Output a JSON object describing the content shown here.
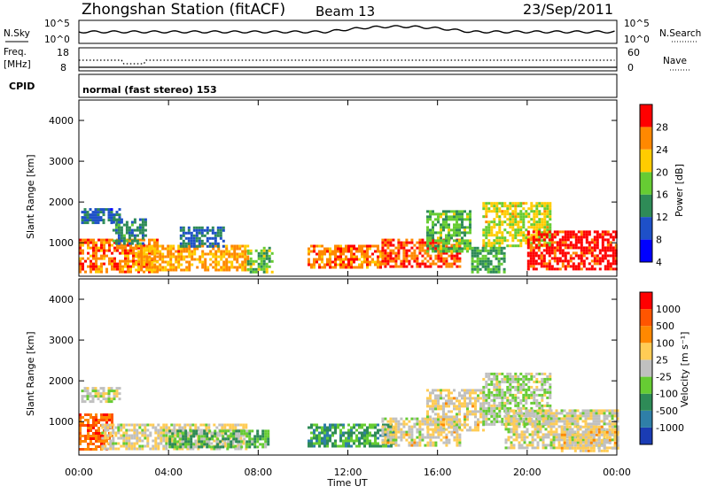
{
  "header": {
    "station": "Zhongshan Station (fitACF)",
    "beam": "Beam 13",
    "date": "23/Sep/2011"
  },
  "top_panels": {
    "noise_label": "N.Sky",
    "noise_ticks": [
      "10^5",
      "10^0"
    ],
    "noise_right_label": "N.Search",
    "noise_right_ticks": [
      "10^5",
      "10^0"
    ],
    "freq_label": "Freq.",
    "freq_unit": "[MHz]",
    "freq_ticks": [
      "18",
      "8"
    ],
    "nave_label": "Nave",
    "nave_ticks": [
      "60",
      "0"
    ],
    "cpid_label": "CPID",
    "cpid_text": "normal (fast stereo) 153"
  },
  "power_panel": {
    "ylabel": "Slant Range [km]",
    "yticks": [
      "4000",
      "3000",
      "2000",
      "1000"
    ],
    "colorbar_label": "Power [dB]",
    "colorbar_ticks": [
      "28",
      "24",
      "20",
      "16",
      "12",
      "8",
      "4"
    ],
    "colors": [
      "#0000ff",
      "#1e50c8",
      "#2e8b57",
      "#66cc33",
      "#ffcc00",
      "#ff8800",
      "#ff0000"
    ]
  },
  "velocity_panel": {
    "ylabel": "Slant Range [km]",
    "yticks": [
      "4000",
      "3000",
      "2000",
      "1000"
    ],
    "colorbar_label": "Velocity [m s⁻¹]",
    "colorbar_ticks": [
      "1000",
      "500",
      "100",
      "25",
      "-25",
      "-100",
      "-500",
      "-1000"
    ],
    "colors": [
      "#1a3cb4",
      "#2f7fa8",
      "#2e8b57",
      "#66cc33",
      "#c0c0c0",
      "#ffcc55",
      "#ff8800",
      "#ff5500",
      "#ff0000"
    ]
  },
  "xaxis": {
    "label": "Time UT",
    "ticks": [
      "00:00",
      "04:00",
      "08:00",
      "12:00",
      "16:00",
      "20:00",
      "00:00"
    ]
  },
  "chart_data": {
    "type": "heatmap",
    "title": "Zhongshan Station (fitACF) Beam 13 23/Sep/2011",
    "xlabel": "Time UT",
    "ylabel": "Slant Range [km]",
    "x_range_hours": [
      0,
      24
    ],
    "y_range_km": [
      180,
      4500
    ],
    "panels": [
      {
        "name": "Power [dB]",
        "value_range": [
          0,
          30
        ],
        "echo_regions": [
          {
            "t_start": 0.1,
            "t_end": 1.8,
            "r_min": 1500,
            "r_max": 1850,
            "value": 8
          },
          {
            "t_start": 0.0,
            "t_end": 3.5,
            "r_min": 300,
            "r_max": 1100,
            "value": 24
          },
          {
            "t_start": 1.5,
            "t_end": 3.0,
            "r_min": 1000,
            "r_max": 1600,
            "value": 10
          },
          {
            "t_start": 2.5,
            "t_end": 7.5,
            "r_min": 350,
            "r_max": 950,
            "value": 22
          },
          {
            "t_start": 4.5,
            "t_end": 6.5,
            "r_min": 900,
            "r_max": 1400,
            "value": 8
          },
          {
            "t_start": 7.5,
            "t_end": 8.6,
            "r_min": 300,
            "r_max": 900,
            "value": 14
          },
          {
            "t_start": 10.2,
            "t_end": 13.5,
            "r_min": 400,
            "r_max": 950,
            "value": 24
          },
          {
            "t_start": 13.5,
            "t_end": 17.0,
            "r_min": 400,
            "r_max": 1100,
            "value": 26
          },
          {
            "t_start": 15.5,
            "t_end": 17.5,
            "r_min": 800,
            "r_max": 1800,
            "value": 14
          },
          {
            "t_start": 18.0,
            "t_end": 21.0,
            "r_min": 900,
            "r_max": 2000,
            "value": 18
          },
          {
            "t_start": 20.0,
            "t_end": 24.0,
            "r_min": 350,
            "r_max": 1300,
            "value": 28
          },
          {
            "t_start": 17.5,
            "t_end": 19.0,
            "r_min": 300,
            "r_max": 900,
            "value": 12
          }
        ]
      },
      {
        "name": "Velocity [m s^-1]",
        "value_range": [
          -1000,
          1000
        ],
        "echo_regions": [
          {
            "t_start": 0.1,
            "t_end": 1.8,
            "r_min": 1500,
            "r_max": 1850,
            "value": 0
          },
          {
            "t_start": 0.0,
            "t_end": 1.5,
            "r_min": 300,
            "r_max": 1200,
            "value": 600
          },
          {
            "t_start": 1.0,
            "t_end": 7.5,
            "r_min": 350,
            "r_max": 950,
            "value": 80
          },
          {
            "t_start": 4.0,
            "t_end": 8.5,
            "r_min": 350,
            "r_max": 800,
            "value": -300
          },
          {
            "t_start": 10.2,
            "t_end": 14.0,
            "r_min": 400,
            "r_max": 950,
            "value": -400
          },
          {
            "t_start": 13.5,
            "t_end": 17.0,
            "r_min": 400,
            "r_max": 1100,
            "value": 100
          },
          {
            "t_start": 15.5,
            "t_end": 18.0,
            "r_min": 800,
            "r_max": 1800,
            "value": 100
          },
          {
            "t_start": 18.0,
            "t_end": 21.0,
            "r_min": 900,
            "r_max": 2200,
            "value": -80
          },
          {
            "t_start": 19.0,
            "t_end": 24.0,
            "r_min": 350,
            "r_max": 1300,
            "value": 60
          },
          {
            "t_start": 21.5,
            "t_end": 24.0,
            "r_min": 300,
            "r_max": 900,
            "value": 150
          }
        ]
      }
    ]
  }
}
